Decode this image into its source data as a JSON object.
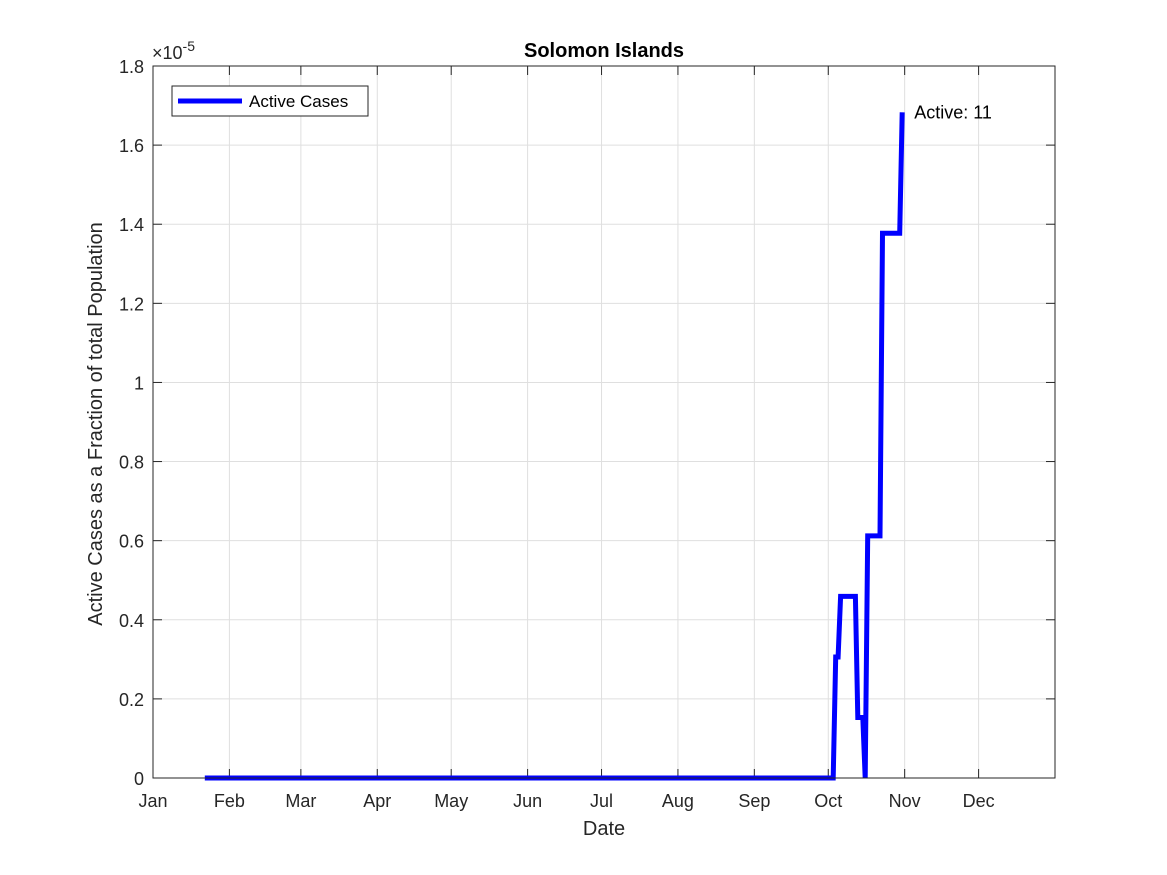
{
  "chart_data": {
    "type": "line",
    "title": "Solomon Islands",
    "xlabel": "Date",
    "ylabel": "Active Cases as a Fraction of total Population",
    "y_exponent_label": "×10",
    "y_exponent_power": "-5",
    "x_tick_labels": [
      "Jan",
      "Feb",
      "Mar",
      "Apr",
      "May",
      "Jun",
      "Jul",
      "Aug",
      "Sep",
      "Oct",
      "Nov",
      "Dec"
    ],
    "x_tick_dates": [
      "2020-01-01",
      "2020-02-01",
      "2020-03-01",
      "2020-04-01",
      "2020-05-01",
      "2020-06-01",
      "2020-07-01",
      "2020-08-01",
      "2020-09-01",
      "2020-10-01",
      "2020-11-01",
      "2020-12-01"
    ],
    "xlim": [
      "2020-01-01",
      "2020-12-31"
    ],
    "y_tick_labels": [
      "0",
      "0.2",
      "0.4",
      "0.6",
      "0.8",
      "1",
      "1.2",
      "1.4",
      "1.6",
      "1.8"
    ],
    "y_tick_values": [
      0,
      0.2,
      0.4,
      0.6,
      0.8,
      1.0,
      1.2,
      1.4,
      1.6,
      1.8
    ],
    "ylim": [
      0,
      1.8
    ],
    "y_scale_note": "values in units of 1e-5",
    "grid": true,
    "legend_position": "top-left",
    "series": [
      {
        "name": "Active Cases",
        "color": "#0000ff",
        "points": [
          [
            "2020-01-22",
            0
          ],
          [
            "2020-10-03",
            0
          ],
          [
            "2020-10-04",
            0.306
          ],
          [
            "2020-10-05",
            0.306
          ],
          [
            "2020-10-06",
            0.459
          ],
          [
            "2020-10-12",
            0.459
          ],
          [
            "2020-10-13",
            0.153
          ],
          [
            "2020-10-15",
            0.153
          ],
          [
            "2020-10-16",
            0
          ],
          [
            "2020-10-17",
            0.612
          ],
          [
            "2020-10-22",
            0.612
          ],
          [
            "2020-10-23",
            1.377
          ],
          [
            "2020-10-30",
            1.377
          ],
          [
            "2020-10-31",
            1.683
          ]
        ]
      }
    ],
    "annotations": [
      {
        "text": "Active: 11",
        "x": "2020-10-31",
        "y": 1.683
      }
    ]
  }
}
